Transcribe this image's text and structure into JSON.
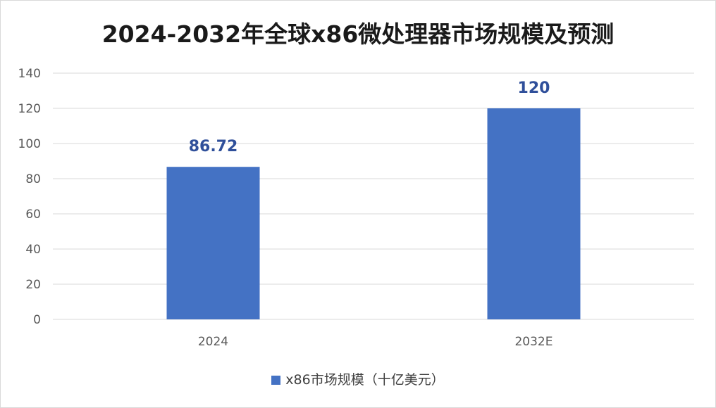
{
  "chart_data": {
    "type": "bar",
    "title": "2024-2032年全球x86微处理器市场规模及预测",
    "categories": [
      "2024",
      "2032E"
    ],
    "series": [
      {
        "name": "x86市场规模（十亿美元）",
        "values": [
          86.72,
          120
        ],
        "data_labels": [
          "86.72",
          "120"
        ],
        "color": "#4472c4"
      }
    ],
    "ylim": [
      0,
      140
    ],
    "yticks": [
      0,
      20,
      40,
      60,
      80,
      100,
      120,
      140
    ],
    "grid": true,
    "legend_position": "bottom",
    "colors": {
      "bar": "#4472c4",
      "data_label": "#2f4f9a",
      "gridline": "#d9d9d9",
      "axis_text": "#595959"
    }
  }
}
